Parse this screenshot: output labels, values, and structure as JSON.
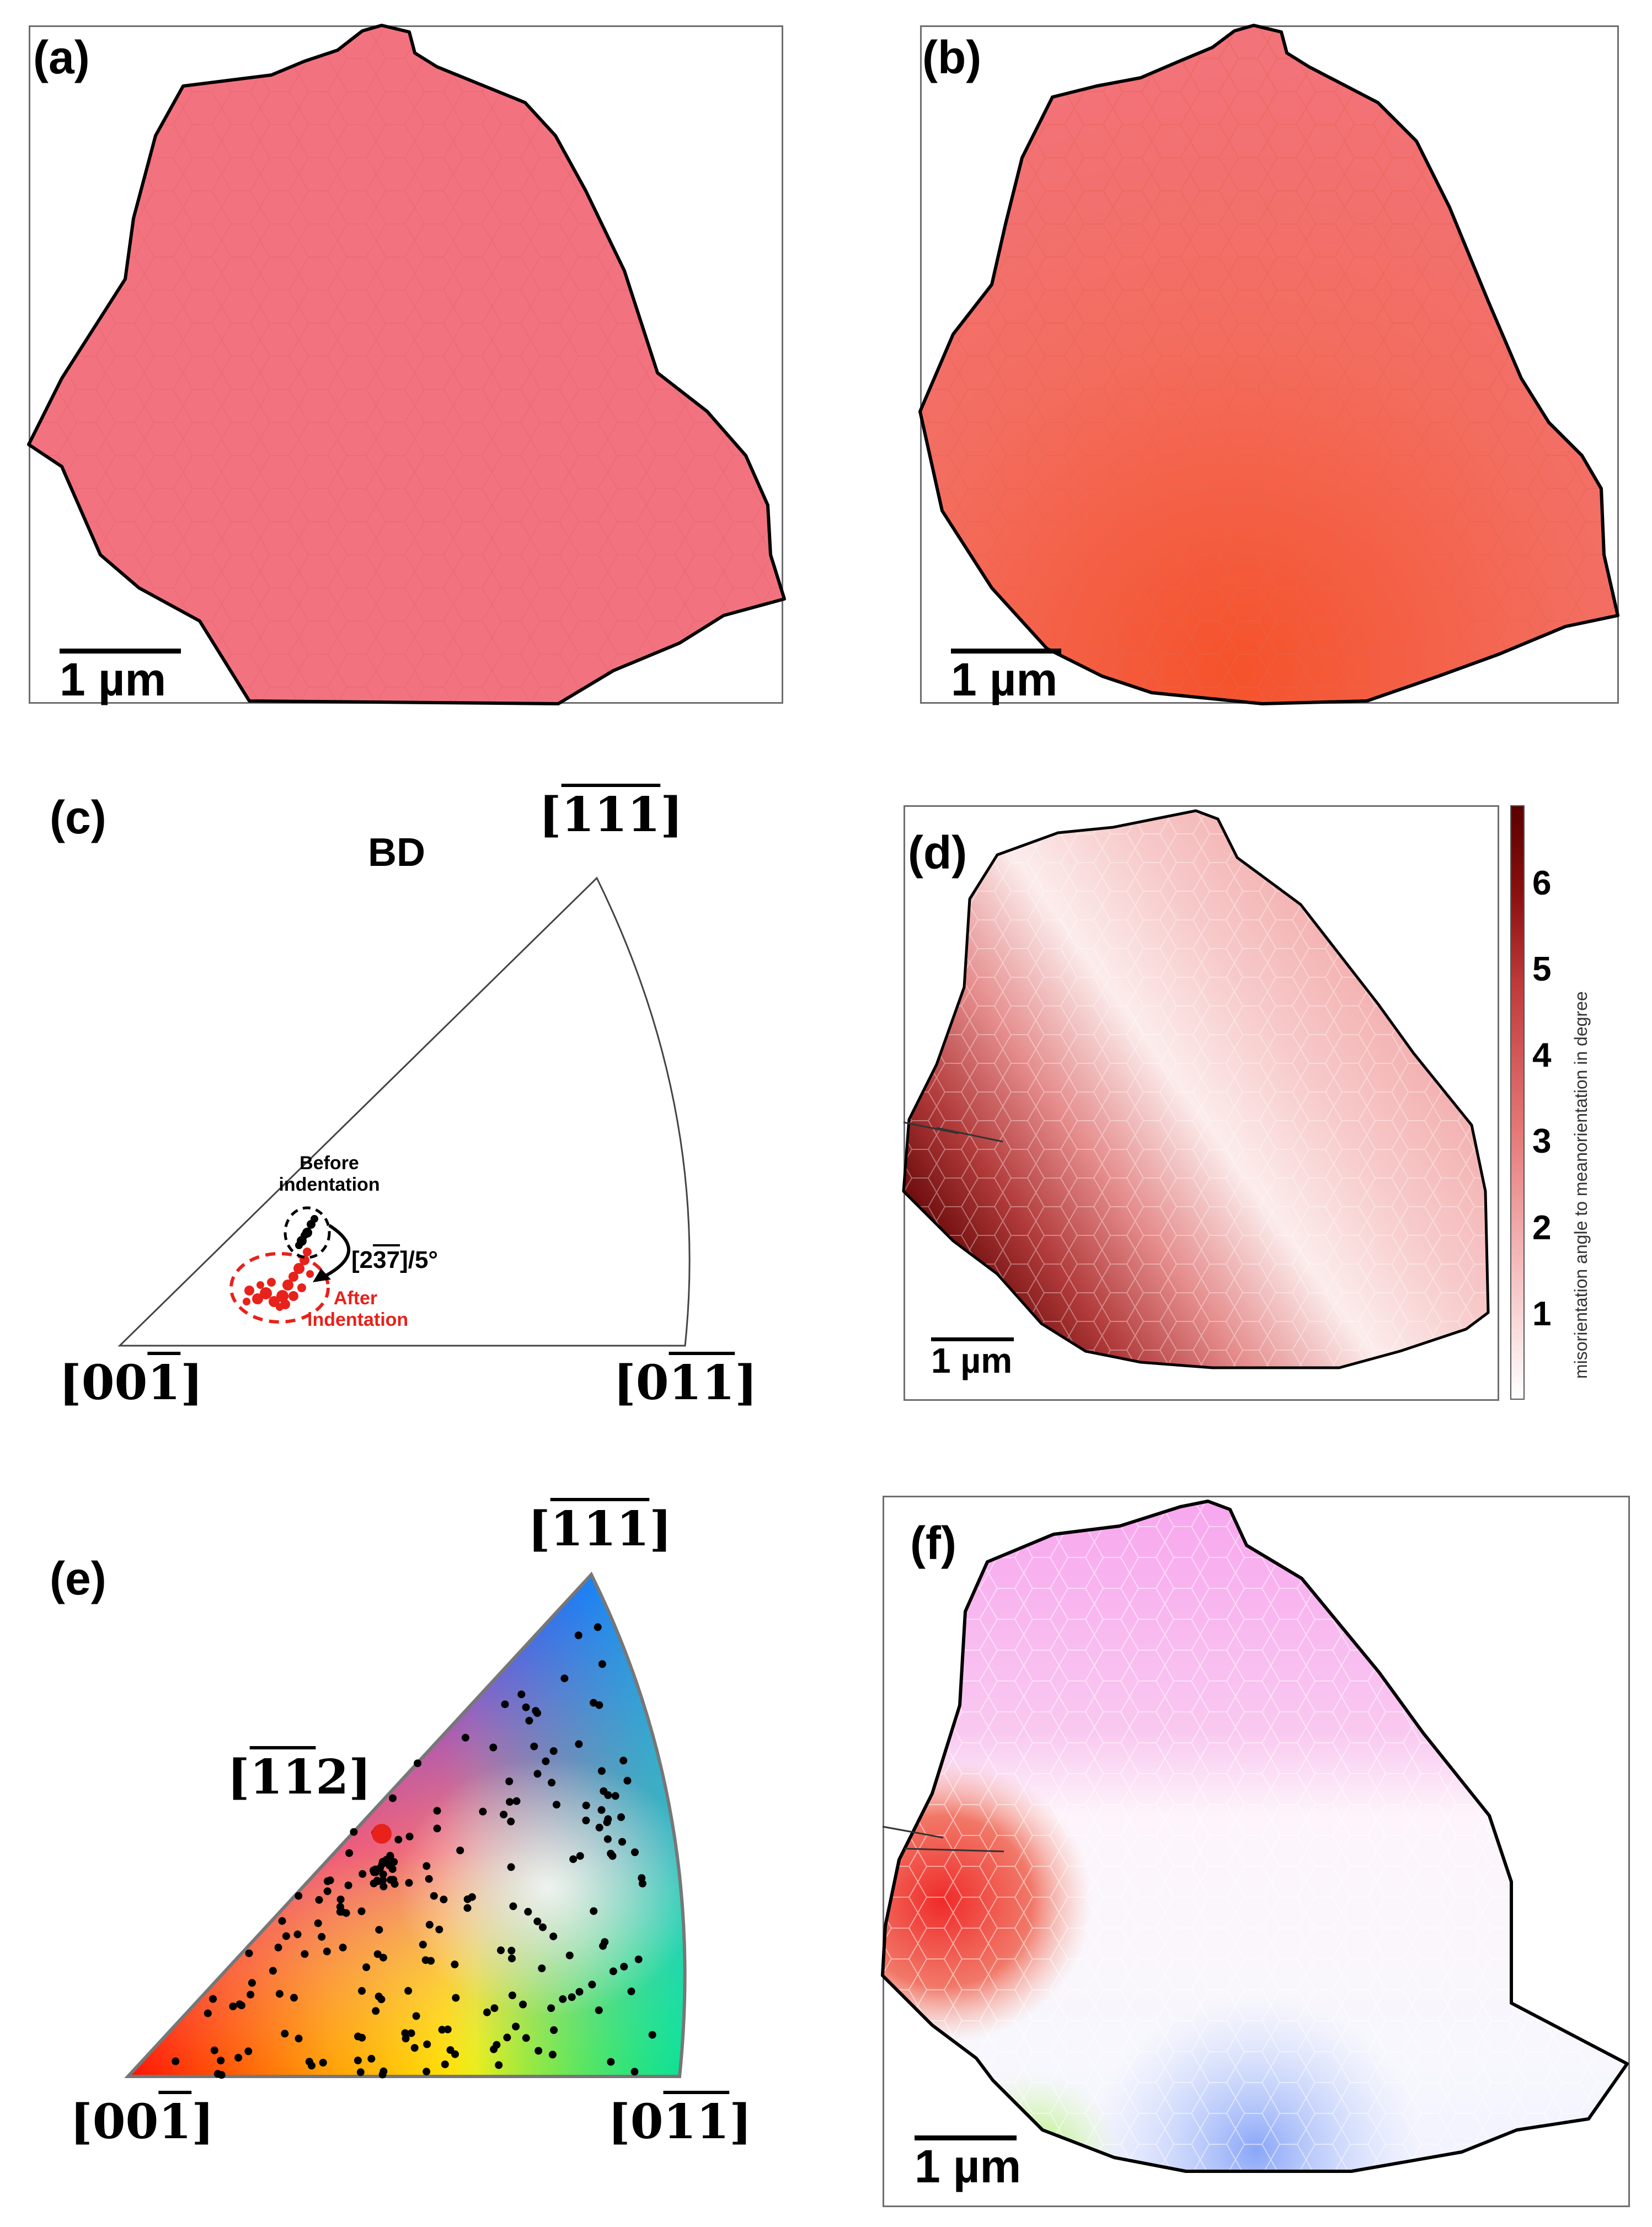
{
  "panels": {
    "a": {
      "label": "(a)",
      "scale_bar": "1 µm",
      "fill_color": "#f2737f"
    },
    "b": {
      "label": "(b)",
      "scale_bar": "1 µm",
      "fill_color": "#f36d5f"
    },
    "c": {
      "label": "(c)",
      "title": "BD",
      "corner_top": {
        "open": "[",
        "digits": "111",
        "close": "]",
        "overline": "111"
      },
      "corner_left": {
        "plain": "[00",
        "over": "1",
        "close": "]"
      },
      "corner_right": {
        "plain": "[0",
        "over": "11",
        "close": "]"
      },
      "before_label": "Before indentation",
      "after_label": "After indentation",
      "rotation_prefix": "[2",
      "rotation_over": "37",
      "rotation_suffix": "]/5°",
      "before_color": "#000000",
      "after_color": "#e8211b"
    },
    "d": {
      "label": "(d)",
      "scale_bar": "1 µm",
      "colorbar_label": "misorientation angle to meanorientation in degree",
      "colorbar_ticks": [
        "1",
        "2",
        "3",
        "4",
        "5",
        "6"
      ],
      "colorbar_max": 6.9,
      "colorbar_low_color": "#ffffff",
      "colorbar_high_color": "#5a0000"
    },
    "e": {
      "label": "(e)",
      "corner_top_over": "111",
      "corner_mid_over": "11",
      "corner_mid_digit": "2",
      "corner_left_plain": "[00",
      "corner_left_over": "1",
      "corner_right_plain": "[0",
      "corner_right_over": "11",
      "highlight_color": "#e8211b"
    },
    "f": {
      "label": "(f)",
      "scale_bar": "1 µm"
    }
  }
}
